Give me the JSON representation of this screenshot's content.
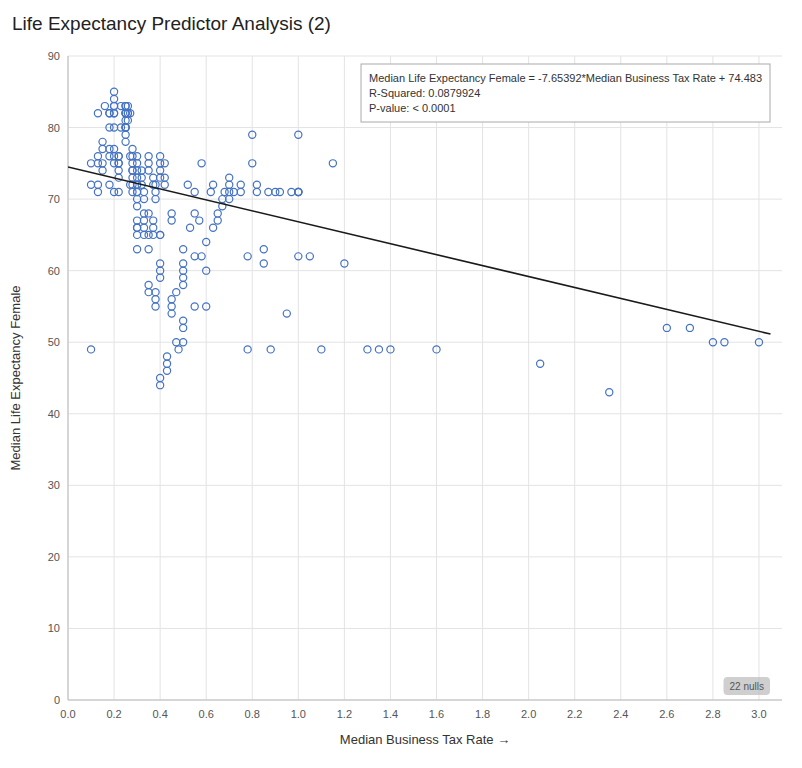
{
  "chart_data": {
    "type": "scatter",
    "title": "Life Expectancy Predictor Analysis (2)",
    "xlabel": "Median Business Tax Rate →",
    "ylabel": "Median Life Expectancy Female",
    "xlim": [
      0.0,
      3.1
    ],
    "ylim": [
      0,
      90
    ],
    "xticks": [
      {
        "value": 0.0,
        "label": "0.0"
      },
      0.2,
      0.4,
      0.6,
      0.8,
      {
        "value": 1.0,
        "label": "1.0"
      },
      1.2,
      1.4,
      1.6,
      1.8,
      {
        "value": 2.0,
        "label": "2.0"
      },
      2.2,
      2.4,
      2.6,
      2.8,
      {
        "value": 3.0,
        "label": "3.0"
      }
    ],
    "yticks": [
      0,
      10,
      20,
      30,
      40,
      50,
      60,
      70,
      80,
      90
    ],
    "grid": true,
    "color": "#4472C4",
    "marker": "circle",
    "annotation": [
      "Median Life Expectancy Female = -7.65392*Median Business Tax Rate + 74.483",
      "R-Squared: 0.0879924",
      "P-value: < 0.0001"
    ],
    "nulls_label": "22 nulls",
    "regression_line": {
      "color": "#1a1a1a",
      "x": [
        0.0,
        3.05
      ],
      "y": [
        74.483,
        51.138544
      ]
    },
    "x": [
      0.1,
      0.1,
      0.1,
      0.13,
      0.13,
      0.13,
      0.13,
      0.13,
      0.15,
      0.15,
      0.15,
      0.15,
      0.16,
      0.18,
      0.18,
      0.18,
      0.18,
      0.18,
      0.18,
      0.2,
      0.2,
      0.2,
      0.2,
      0.2,
      0.2,
      0.2,
      0.2,
      0.2,
      0.2,
      0.2,
      0.22,
      0.22,
      0.22,
      0.22,
      0.22,
      0.22,
      0.22,
      0.23,
      0.23,
      0.25,
      0.25,
      0.25,
      0.25,
      0.25,
      0.25,
      0.25,
      0.25,
      0.25,
      0.25,
      0.25,
      0.26,
      0.26,
      0.26,
      0.26,
      0.27,
      0.27,
      0.27,
      0.28,
      0.28,
      0.28,
      0.28,
      0.28,
      0.28,
      0.28,
      0.28,
      0.3,
      0.3,
      0.3,
      0.3,
      0.3,
      0.3,
      0.3,
      0.3,
      0.3,
      0.3,
      0.3,
      0.3,
      0.3,
      0.3,
      0.3,
      0.32,
      0.32,
      0.32,
      0.33,
      0.33,
      0.33,
      0.33,
      0.33,
      0.33,
      0.35,
      0.35,
      0.35,
      0.35,
      0.35,
      0.35,
      0.35,
      0.35,
      0.37,
      0.37,
      0.37,
      0.37,
      0.37,
      0.38,
      0.38,
      0.38,
      0.38,
      0.38,
      0.38,
      0.4,
      0.4,
      0.4,
      0.4,
      0.4,
      0.4,
      0.4,
      0.4,
      0.4,
      0.4,
      0.4,
      0.42,
      0.42,
      0.42,
      0.43,
      0.43,
      0.43,
      0.45,
      0.45,
      0.45,
      0.45,
      0.45,
      0.47,
      0.47,
      0.48,
      0.5,
      0.5,
      0.5,
      0.5,
      0.5,
      0.5,
      0.5,
      0.5,
      0.52,
      0.53,
      0.55,
      0.55,
      0.55,
      0.55,
      0.57,
      0.58,
      0.58,
      0.6,
      0.6,
      0.6,
      0.62,
      0.63,
      0.63,
      0.65,
      0.65,
      0.67,
      0.67,
      0.68,
      0.7,
      0.7,
      0.7,
      0.7,
      0.72,
      0.75,
      0.75,
      0.78,
      0.78,
      0.8,
      0.8,
      0.82,
      0.82,
      0.85,
      0.85,
      0.87,
      0.88,
      0.9,
      0.92,
      0.95,
      0.97,
      1.0,
      1.0,
      1.0,
      1.0,
      1.0,
      1.05,
      1.1,
      1.15,
      1.2,
      1.3,
      1.35,
      1.4,
      1.6,
      2.05,
      2.35,
      2.6,
      2.7,
      2.8,
      2.85,
      3.0
    ],
    "y": [
      49.0,
      72.0,
      75.0,
      82.0,
      75.0,
      72.0,
      71.0,
      76.0,
      75.0,
      77.0,
      78.0,
      74.0,
      83.0,
      76.0,
      82.0,
      82.0,
      80.0,
      77.0,
      72.0,
      84.0,
      82.0,
      83.0,
      82.0,
      80.0,
      75.0,
      76.0,
      77.0,
      71.0,
      85.0,
      83.0,
      76.0,
      75.0,
      75.0,
      76.0,
      71.0,
      74.0,
      73.0,
      83.0,
      80.0,
      81.0,
      82.0,
      80.0,
      80.0,
      82.0,
      83.0,
      83.0,
      82.0,
      80.0,
      78.0,
      79.0,
      82.0,
      82.0,
      83.0,
      81.0,
      82.0,
      76.0,
      72.0,
      75.0,
      76.0,
      77.0,
      72.0,
      74.0,
      73.0,
      74.0,
      71.0,
      76.0,
      75.0,
      73.0,
      72.0,
      74.0,
      66.0,
      65.0,
      63.0,
      67.0,
      66.0,
      72.0,
      71.0,
      70.0,
      69.0,
      71.0,
      74.0,
      72.0,
      73.0,
      65.0,
      66.0,
      70.0,
      71.0,
      67.0,
      68.0,
      76.0,
      75.0,
      74.0,
      68.0,
      65.0,
      63.0,
      57.0,
      58.0,
      65.0,
      66.0,
      67.0,
      73.0,
      72.0,
      57.0,
      55.0,
      56.0,
      70.0,
      71.0,
      72.0,
      75.0,
      74.0,
      76.0,
      73.0,
      60.0,
      59.0,
      61.0,
      65.0,
      65.0,
      45.0,
      44.0,
      75.0,
      73.0,
      72.0,
      46.0,
      47.0,
      48.0,
      55.0,
      54.0,
      56.0,
      68.0,
      67.0,
      50.0,
      57.0,
      49.0,
      50.0,
      52.0,
      53.0,
      60.0,
      59.0,
      58.0,
      61.0,
      63.0,
      72.0,
      66.0,
      55.0,
      62.0,
      68.0,
      71.0,
      67.0,
      62.0,
      75.0,
      60.0,
      64.0,
      55.0,
      71.0,
      72.0,
      66.0,
      67.0,
      68.0,
      69.0,
      70.0,
      71.0,
      71.0,
      72.0,
      73.0,
      70.0,
      71.0,
      71.0,
      72.0,
      62.0,
      49.0,
      79.0,
      75.0,
      71.0,
      72.0,
      63.0,
      61.0,
      71.0,
      49.0,
      71.0,
      71.0,
      54.0,
      71.0,
      79.0,
      71.0,
      71.0,
      71.0,
      62.0,
      62.0,
      49.0,
      75.0,
      61.0,
      49.0,
      49.0,
      49.0,
      49.0,
      47.0,
      43.0,
      52.0,
      52.0,
      50.0,
      50.0,
      50.0
    ]
  }
}
